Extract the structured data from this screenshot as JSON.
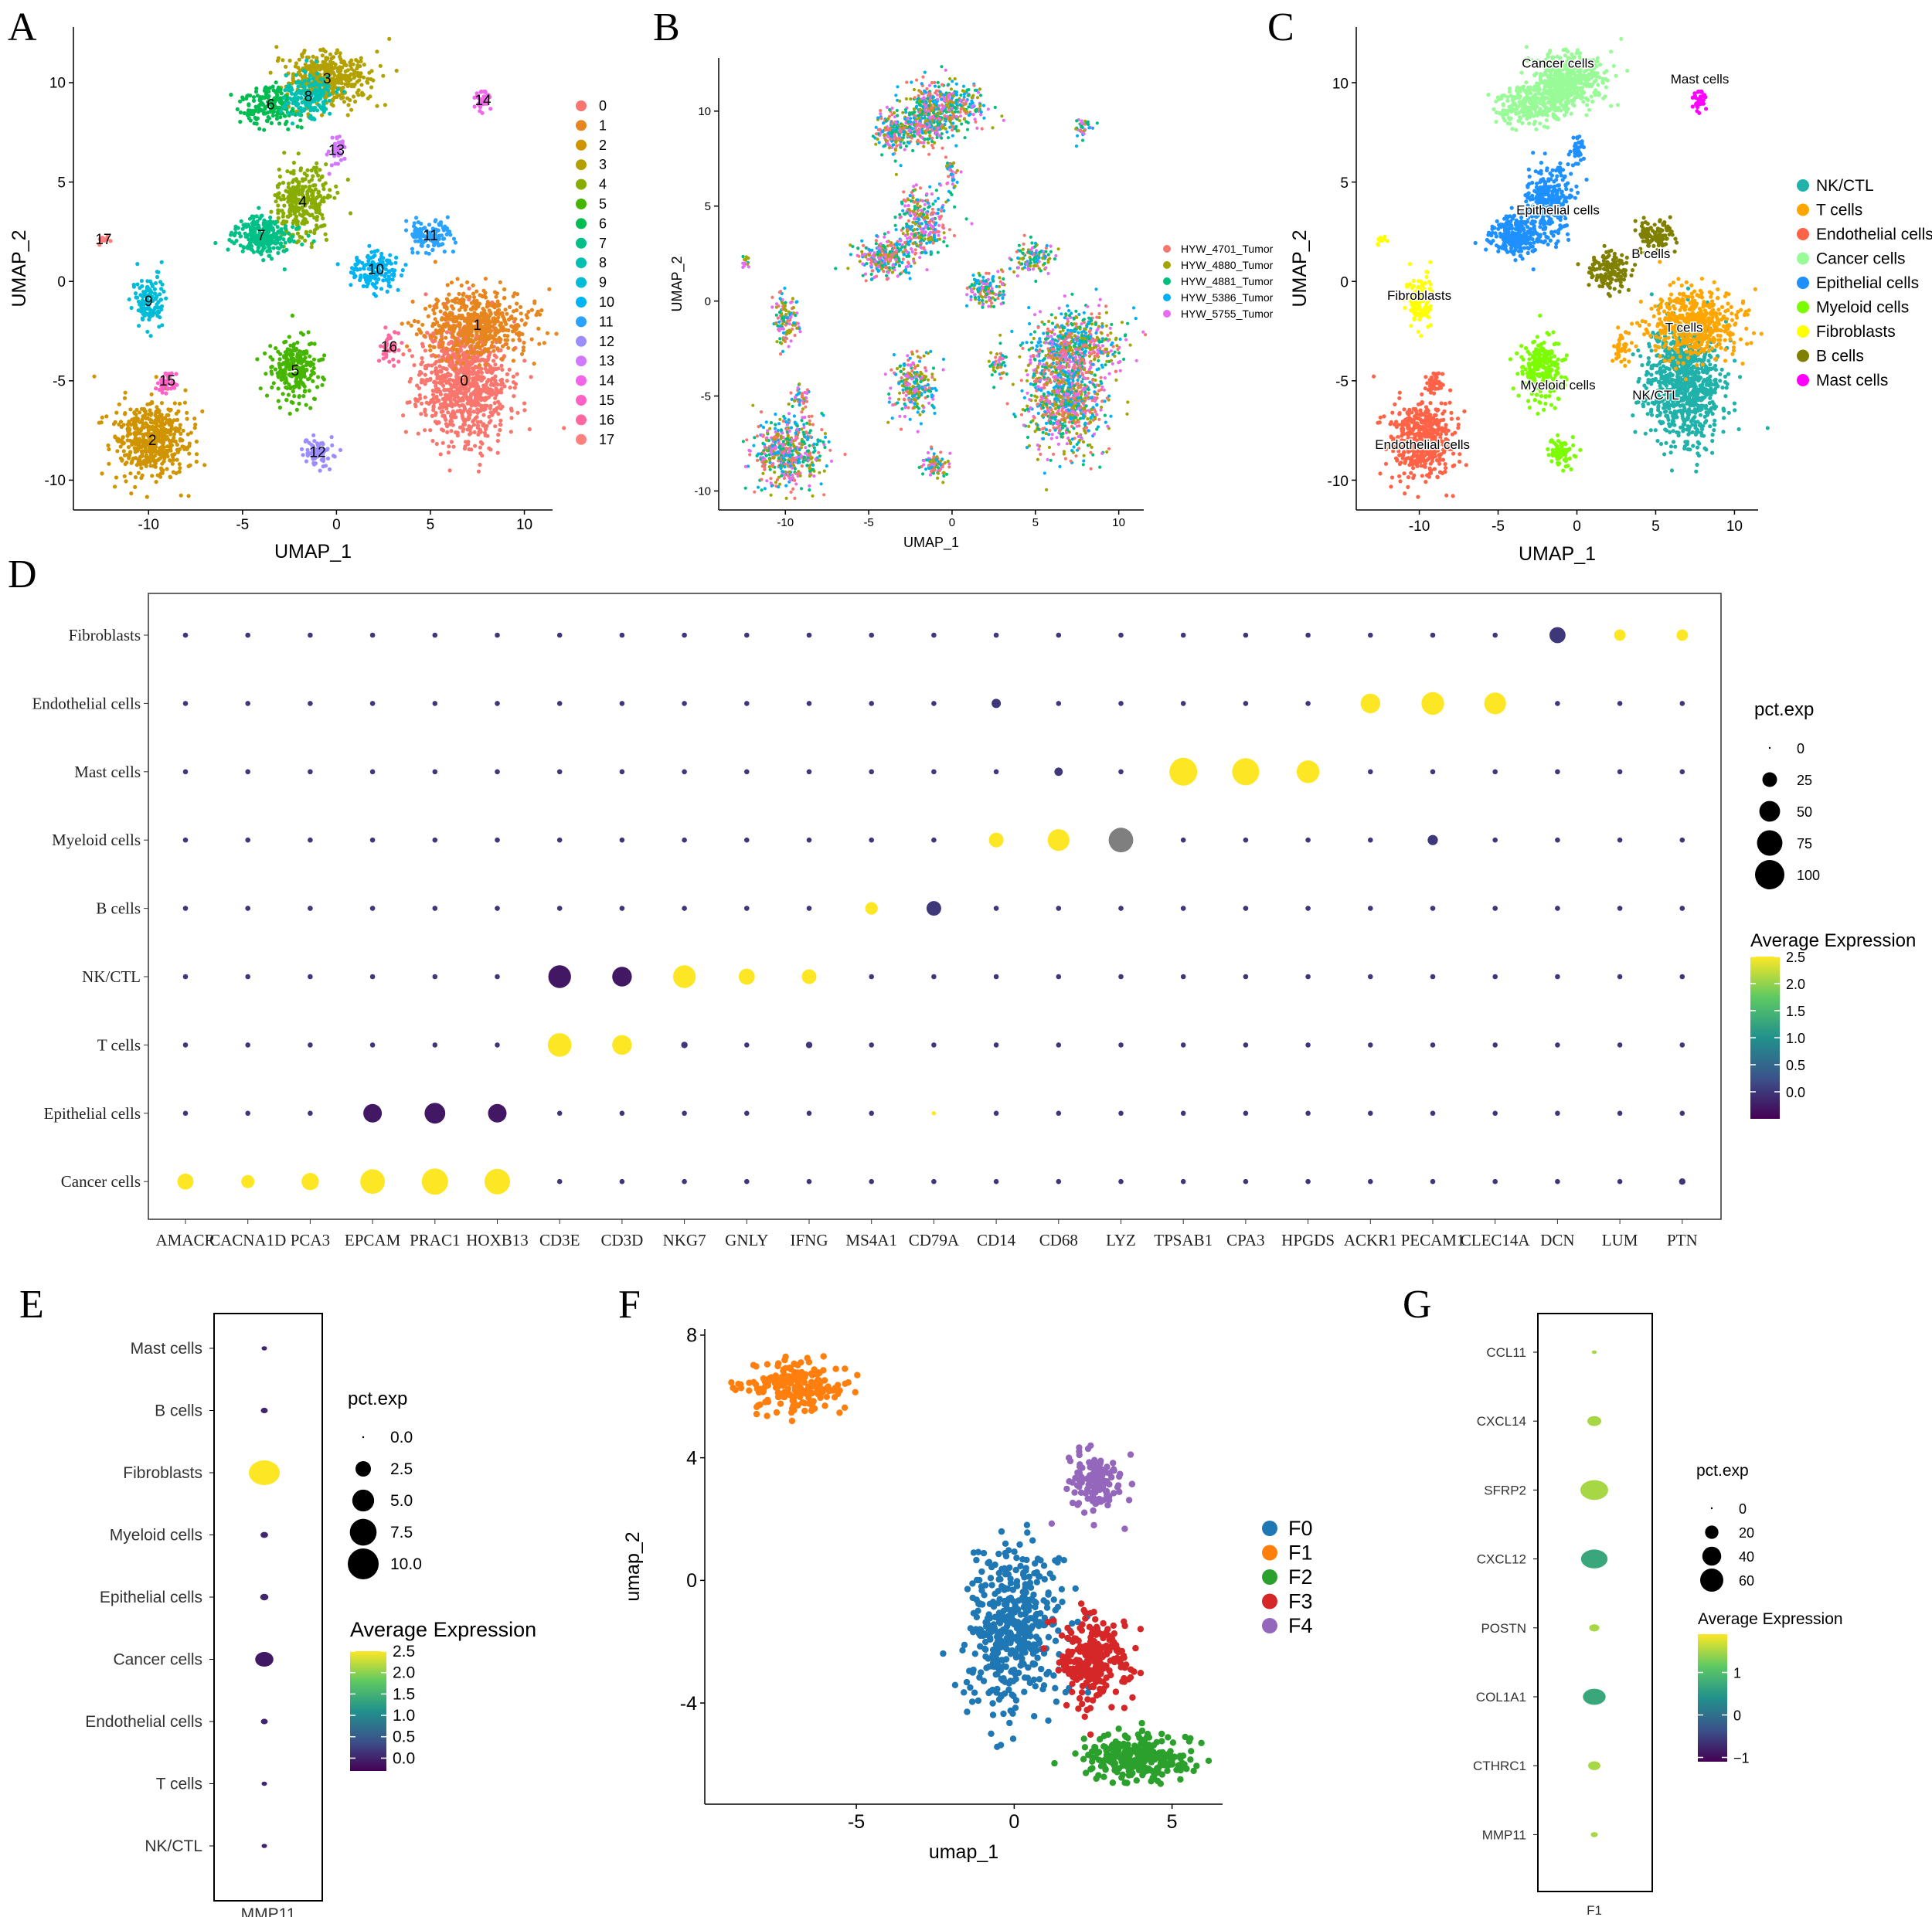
{
  "panel_labels": [
    "A",
    "B",
    "C",
    "D",
    "E",
    "F",
    "G"
  ],
  "colors": {
    "viridis": [
      "#440154",
      "#3b528b",
      "#21918c",
      "#5ec962",
      "#fde725"
    ],
    "dot_low": "#2e1b6b",
    "dot_high": "#f5c242",
    "na_grey": "#7f7f7f"
  },
  "chart_data": [
    {
      "panel": "A",
      "type": "scatter",
      "title": "",
      "xlabel": "UMAP_1",
      "ylabel": "UMAP_2",
      "xlim": [
        -14,
        11.5
      ],
      "ylim": [
        -11.5,
        12.8
      ],
      "xticks": [
        -10,
        -5,
        0,
        5,
        10
      ],
      "yticks": [
        -10,
        -5,
        0,
        5,
        10
      ],
      "legend": [
        "0",
        "1",
        "2",
        "3",
        "4",
        "5",
        "6",
        "7",
        "8",
        "9",
        "10",
        "11",
        "12",
        "13",
        "14",
        "15",
        "16",
        "17"
      ],
      "legend_colors": [
        "#F8766D",
        "#E7851E",
        "#D09400",
        "#B2A100",
        "#89AC00",
        "#45B500",
        "#00BC51",
        "#00C087",
        "#00C0B2",
        "#00BCD6",
        "#00B3F2",
        "#29A3FF",
        "#9C8DFF",
        "#D277FF",
        "#F166E8",
        "#FF61C7",
        "#FF689E",
        "#FF7F7F"
      ],
      "clusters": [
        {
          "label": "0",
          "color": "#F8766D",
          "x": 6.8,
          "y": -5.0,
          "rx": 2.3,
          "ry": 3.0,
          "n": 900
        },
        {
          "label": "1",
          "color": "#E7851E",
          "x": 7.5,
          "y": -2.2,
          "rx": 2.8,
          "ry": 1.7,
          "n": 520
        },
        {
          "label": "2",
          "color": "#D09400",
          "x": -9.8,
          "y": -8.0,
          "rx": 2.0,
          "ry": 1.9,
          "n": 520
        },
        {
          "label": "3",
          "color": "#B2A100",
          "x": -0.5,
          "y": 10.2,
          "rx": 2.3,
          "ry": 1.4,
          "n": 420
        },
        {
          "label": "4",
          "color": "#89AC00",
          "x": -1.8,
          "y": 4.0,
          "rx": 1.4,
          "ry": 1.7,
          "n": 300
        },
        {
          "label": "5",
          "color": "#45B500",
          "x": -2.2,
          "y": -4.5,
          "rx": 1.3,
          "ry": 1.6,
          "n": 240
        },
        {
          "label": "6",
          "color": "#00BC51",
          "x": -3.5,
          "y": 8.9,
          "rx": 1.3,
          "ry": 1.0,
          "n": 200
        },
        {
          "label": "7",
          "color": "#00C087",
          "x": -4.0,
          "y": 2.3,
          "rx": 1.6,
          "ry": 1.0,
          "n": 260
        },
        {
          "label": "8",
          "color": "#00C0B2",
          "x": -1.5,
          "y": 9.3,
          "rx": 1.2,
          "ry": 1.1,
          "n": 180
        },
        {
          "label": "9",
          "color": "#00BCD6",
          "x": -10.0,
          "y": -1.0,
          "rx": 0.8,
          "ry": 1.3,
          "n": 120
        },
        {
          "label": "10",
          "color": "#00B3F2",
          "x": 2.1,
          "y": 0.6,
          "rx": 1.3,
          "ry": 0.9,
          "n": 140
        },
        {
          "label": "11",
          "color": "#29A3FF",
          "x": 5.0,
          "y": 2.3,
          "rx": 1.3,
          "ry": 0.8,
          "n": 120
        },
        {
          "label": "12",
          "color": "#9C8DFF",
          "x": -1.0,
          "y": -8.6,
          "rx": 0.9,
          "ry": 0.7,
          "n": 90
        },
        {
          "label": "13",
          "color": "#D277FF",
          "x": 0.0,
          "y": 6.6,
          "rx": 0.4,
          "ry": 0.9,
          "n": 40
        },
        {
          "label": "14",
          "color": "#F166E8",
          "x": 7.8,
          "y": 9.1,
          "rx": 0.5,
          "ry": 0.5,
          "n": 35
        },
        {
          "label": "15",
          "color": "#FF61C7",
          "x": -9.0,
          "y": -5.0,
          "rx": 0.5,
          "ry": 0.6,
          "n": 40
        },
        {
          "label": "16",
          "color": "#FF689E",
          "x": 2.8,
          "y": -3.3,
          "rx": 0.6,
          "ry": 0.9,
          "n": 40
        },
        {
          "label": "17",
          "color": "#FF7F7F",
          "x": -12.4,
          "y": 2.1,
          "rx": 0.3,
          "ry": 0.3,
          "n": 14
        }
      ]
    },
    {
      "panel": "B",
      "type": "scatter",
      "xlabel": "UMAP_1",
      "ylabel": "UMAP_2",
      "xlim": [
        -14,
        11.5
      ],
      "ylim": [
        -11,
        12.8
      ],
      "xticks": [
        -10,
        -5,
        0,
        5,
        10
      ],
      "yticks": [
        -10,
        -5,
        0,
        5,
        10
      ],
      "legend": [
        "HYW_4701_Tumor",
        "HYW_4880_Tumor",
        "HYW_4881_Tumor",
        "HYW_5386_Tumor",
        "HYW_5755_Tumor"
      ],
      "legend_colors": [
        "#F8766D",
        "#A3A500",
        "#00BF7D",
        "#00B0F6",
        "#E76BF3"
      ]
    },
    {
      "panel": "C",
      "type": "scatter",
      "xlabel": "UMAP_1",
      "ylabel": "UMAP_2",
      "xlim": [
        -14,
        11.5
      ],
      "ylim": [
        -11.5,
        12.8
      ],
      "xticks": [
        -10,
        -5,
        0,
        5,
        10
      ],
      "yticks": [
        -10,
        -5,
        0,
        5,
        10
      ],
      "legend": [
        "NK/CTL",
        "T cells",
        "Endothelial cells",
        "Cancer cells",
        "Epithelial cells",
        "Myeloid cells",
        "Fibroblasts",
        "B cells",
        "Mast cells"
      ],
      "legend_colors": [
        "#20B2AA",
        "#FFA500",
        "#FF6347",
        "#98FB98",
        "#1E90FF",
        "#7CFC00",
        "#FFFF00",
        "#808000",
        "#FF00FF"
      ],
      "annotations": [
        {
          "text": "Cancer cells",
          "x": -1.2,
          "y": 11.0
        },
        {
          "text": "Mast cells",
          "x": 7.8,
          "y": 10.2
        },
        {
          "text": "Epithelial cells",
          "x": -1.2,
          "y": 3.6
        },
        {
          "text": "B cells",
          "x": 4.7,
          "y": 1.4
        },
        {
          "text": "Fibroblasts",
          "x": -10.0,
          "y": -0.7
        },
        {
          "text": "T cells",
          "x": 6.8,
          "y": -2.3
        },
        {
          "text": "Myeloid cells",
          "x": -1.2,
          "y": -5.2
        },
        {
          "text": "NK/CTL",
          "x": 5.0,
          "y": -5.7
        },
        {
          "text": "Endothelial cells",
          "x": -9.8,
          "y": -8.2
        }
      ]
    },
    {
      "panel": "D",
      "type": "dotplot",
      "genes": [
        "AMACR",
        "CACNA1D",
        "PCA3",
        "EPCAM",
        "PRAC1",
        "HOXB13",
        "CD3E",
        "CD3D",
        "NKG7",
        "GNLY",
        "IFNG",
        "MS4A1",
        "CD79A",
        "CD14",
        "CD68",
        "LYZ",
        "TPSAB1",
        "CPA3",
        "HPGDS",
        "ACKR1",
        "PECAM1",
        "CLEC14A",
        "DCN",
        "LUM",
        "PTN"
      ],
      "cell_types": [
        "Fibroblasts",
        "Endothelial cells",
        "Mast cells",
        "Myeloid cells",
        "B cells",
        "NK/CTL",
        "T cells",
        "Epithelial cells",
        "Cancer cells"
      ],
      "size_legend_title": "pct.exp",
      "size_breaks": [
        0,
        25,
        50,
        75,
        100
      ],
      "size_labels": [
        "0",
        "25",
        "50",
        "75",
        "100"
      ],
      "color_legend_title": "Average Expression",
      "color_range": [
        -0.5,
        2.5
      ],
      "color_ticks": [
        2.5,
        2.0,
        1.5,
        1.0,
        0.5,
        0.0
      ],
      "color_tick_labels": [
        "2.5",
        "2.0",
        "1.5",
        "1.0",
        "0.5",
        "0.0"
      ],
      "highlights": [
        {
          "cell": "Fibroblasts",
          "gene": "DCN",
          "pct": 30,
          "expr": 0.0
        },
        {
          "cell": "Fibroblasts",
          "gene": "LUM",
          "pct": 15,
          "expr": 2.5
        },
        {
          "cell": "Fibroblasts",
          "gene": "PTN",
          "pct": 15,
          "expr": 2.5
        },
        {
          "cell": "Endothelial cells",
          "gene": "CD14",
          "pct": 10,
          "expr": 0.0
        },
        {
          "cell": "Endothelial cells",
          "gene": "ACKR1",
          "pct": 45,
          "expr": 2.5
        },
        {
          "cell": "Endothelial cells",
          "gene": "PECAM1",
          "pct": 60,
          "expr": 2.5
        },
        {
          "cell": "Endothelial cells",
          "gene": "CLEC14A",
          "pct": 55,
          "expr": 2.5
        },
        {
          "cell": "Mast cells",
          "gene": "CD68",
          "pct": 8,
          "expr": 0.0
        },
        {
          "cell": "Mast cells",
          "gene": "TPSAB1",
          "pct": 90,
          "expr": 2.5
        },
        {
          "cell": "Mast cells",
          "gene": "CPA3",
          "pct": 85,
          "expr": 2.5
        },
        {
          "cell": "Mast cells",
          "gene": "HPGDS",
          "pct": 60,
          "expr": 2.5
        },
        {
          "cell": "Myeloid cells",
          "gene": "CD14",
          "pct": 25,
          "expr": 2.5
        },
        {
          "cell": "Myeloid cells",
          "gene": "CD68",
          "pct": 55,
          "expr": 2.5
        },
        {
          "cell": "Myeloid cells",
          "gene": "LYZ",
          "pct": 70,
          "expr": null
        },
        {
          "cell": "Myeloid cells",
          "gene": "PECAM1",
          "pct": 12,
          "expr": 0.0
        },
        {
          "cell": "B cells",
          "gene": "MS4A1",
          "pct": 18,
          "expr": 2.5
        },
        {
          "cell": "B cells",
          "gene": "CD79A",
          "pct": 25,
          "expr": 0.0
        },
        {
          "cell": "NK/CTL",
          "gene": "CD3E",
          "pct": 60,
          "expr": -0.3
        },
        {
          "cell": "NK/CTL",
          "gene": "CD3D",
          "pct": 45,
          "expr": -0.3
        },
        {
          "cell": "NK/CTL",
          "gene": "NKG7",
          "pct": 60,
          "expr": 2.5
        },
        {
          "cell": "NK/CTL",
          "gene": "GNLY",
          "pct": 30,
          "expr": 2.5
        },
        {
          "cell": "NK/CTL",
          "gene": "IFNG",
          "pct": 25,
          "expr": 2.5
        },
        {
          "cell": "T cells",
          "gene": "CD3E",
          "pct": 65,
          "expr": 2.5
        },
        {
          "cell": "T cells",
          "gene": "CD3D",
          "pct": 45,
          "expr": 2.5
        },
        {
          "cell": "T cells",
          "gene": "NKG7",
          "pct": 5,
          "expr": 0.0
        },
        {
          "cell": "T cells",
          "gene": "IFNG",
          "pct": 5,
          "expr": 0.0
        },
        {
          "cell": "Epithelial cells",
          "gene": "EPCAM",
          "pct": 40,
          "expr": -0.3
        },
        {
          "cell": "Epithelial cells",
          "gene": "PRAC1",
          "pct": 50,
          "expr": -0.3
        },
        {
          "cell": "Epithelial cells",
          "gene": "HOXB13",
          "pct": 40,
          "expr": -0.3
        },
        {
          "cell": "Epithelial cells",
          "gene": "CD79A",
          "pct": 2,
          "expr": 2.5
        },
        {
          "cell": "Cancer cells",
          "gene": "AMACR",
          "pct": 30,
          "expr": 2.5
        },
        {
          "cell": "Cancer cells",
          "gene": "CACNA1D",
          "pct": 20,
          "expr": 2.5
        },
        {
          "cell": "Cancer cells",
          "gene": "PCA3",
          "pct": 35,
          "expr": 2.5
        },
        {
          "cell": "Cancer cells",
          "gene": "EPCAM",
          "pct": 70,
          "expr": 2.5
        },
        {
          "cell": "Cancer cells",
          "gene": "PRAC1",
          "pct": 80,
          "expr": 2.5
        },
        {
          "cell": "Cancer cells",
          "gene": "HOXB13",
          "pct": 75,
          "expr": 2.5
        },
        {
          "cell": "Cancer cells",
          "gene": "PTN",
          "pct": 5,
          "expr": 0.0
        }
      ]
    },
    {
      "panel": "E",
      "type": "dotplot",
      "genes": [
        "MMP11"
      ],
      "cell_types": [
        "Mast cells",
        "B cells",
        "Fibroblasts",
        "Myeloid cells",
        "Epithelial cells",
        "Cancer cells",
        "Endothelial cells",
        "T cells",
        "NK/CTL"
      ],
      "pct": [
        0.3,
        0.5,
        10.0,
        0.6,
        0.7,
        3.5,
        0.5,
        0.3,
        0.3
      ],
      "expr": [
        0.0,
        0.0,
        2.5,
        0.0,
        0.0,
        -0.1,
        0.0,
        0.0,
        0.0
      ],
      "size_legend_title": "pct.exp",
      "size_breaks": [
        0.0,
        2.5,
        5.0,
        7.5,
        10.0
      ],
      "size_labels": [
        "0.0",
        "2.5",
        "5.0",
        "7.5",
        "10.0"
      ],
      "color_legend_title": "Average Expression",
      "color_range": [
        -0.3,
        2.5
      ],
      "color_ticks": [
        2.5,
        2.0,
        1.5,
        1.0,
        0.5,
        0.0
      ],
      "color_tick_labels": [
        "2.5",
        "2.0",
        "1.5",
        "1.0",
        "0.5",
        "0.0"
      ]
    },
    {
      "panel": "F",
      "type": "scatter",
      "xlabel": "umap_1",
      "ylabel": "umap_2",
      "xlim": [
        -9.8,
        6.6
      ],
      "ylim": [
        -7.3,
        8.2
      ],
      "xticks": [
        -5,
        0,
        5
      ],
      "yticks": [
        -4,
        0,
        4,
        8
      ],
      "legend": [
        "F0",
        "F1",
        "F2",
        "F3",
        "F4"
      ],
      "legend_colors": [
        "#1F77B4",
        "#FF7F0E",
        "#2CA02C",
        "#D62728",
        "#9467BD"
      ],
      "clusters": [
        {
          "label": "F0",
          "color": "#1F77B4",
          "x": 0.0,
          "y": -1.6,
          "rx": 1.5,
          "ry": 2.7,
          "n": 430
        },
        {
          "label": "F1",
          "color": "#FF7F0E",
          "x": -7.0,
          "y": 6.3,
          "rx": 1.6,
          "ry": 0.85,
          "n": 200
        },
        {
          "label": "F2",
          "color": "#2CA02C",
          "x": 4.0,
          "y": -5.8,
          "rx": 1.9,
          "ry": 0.75,
          "n": 250
        },
        {
          "label": "F3",
          "color": "#D62728",
          "x": 2.5,
          "y": -2.6,
          "rx": 1.1,
          "ry": 1.5,
          "n": 250
        },
        {
          "label": "F4",
          "color": "#9467BD",
          "x": 2.6,
          "y": 3.2,
          "rx": 1.0,
          "ry": 1.1,
          "n": 120
        }
      ]
    },
    {
      "panel": "G",
      "type": "dotplot",
      "genes": [
        "F1"
      ],
      "cell_types": [
        "CCL11",
        "CXCL14",
        "SFRP2",
        "CXCL12",
        "POSTN",
        "COL1A1",
        "CTHRC1",
        "MMP11"
      ],
      "pct": [
        2,
        15,
        60,
        55,
        8,
        40,
        12,
        4
      ],
      "expr": [
        1.5,
        1.5,
        1.5,
        0.7,
        1.5,
        0.7,
        1.5,
        1.5
      ],
      "size_legend_title": "pct.exp",
      "size_breaks": [
        0,
        20,
        40,
        60
      ],
      "size_labels": [
        "0",
        "20",
        "40",
        "60"
      ],
      "color_legend_title": "Average Expression",
      "color_range": [
        -1.1,
        1.9
      ],
      "color_ticks": [
        1,
        0,
        -1
      ],
      "color_tick_labels": [
        "1",
        "0",
        "−1"
      ]
    }
  ]
}
